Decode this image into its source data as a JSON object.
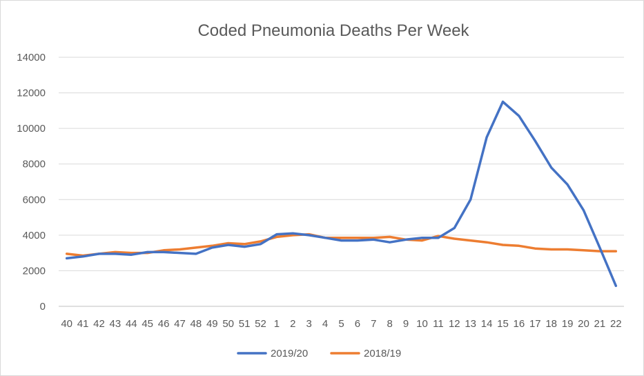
{
  "chart_data": {
    "type": "line",
    "title": "Coded Pneumonia Deaths Per Week",
    "xlabel": "",
    "ylabel": "",
    "ylim": [
      0,
      14000
    ],
    "yticks": [
      "0",
      "2000",
      "4000",
      "6000",
      "8000",
      "10000",
      "12000",
      "14000"
    ],
    "categories": [
      "40",
      "41",
      "42",
      "43",
      "44",
      "45",
      "46",
      "47",
      "48",
      "49",
      "50",
      "51",
      "52",
      "1",
      "2",
      "3",
      "4",
      "5",
      "6",
      "7",
      "8",
      "9",
      "10",
      "11",
      "12",
      "13",
      "14",
      "15",
      "16",
      "17",
      "18",
      "19",
      "20",
      "21",
      "22"
    ],
    "grid": true,
    "legend": "bottom",
    "series": [
      {
        "name": "2019/20",
        "color": "#4472c4",
        "values": [
          2700,
          2800,
          2950,
          2950,
          2900,
          3050,
          3050,
          3000,
          2950,
          3300,
          3450,
          3350,
          3500,
          4050,
          4100,
          4000,
          3850,
          3700,
          3700,
          3750,
          3600,
          3750,
          3850,
          3850,
          4400,
          6000,
          9500,
          11500,
          10700,
          9300,
          7800,
          6850,
          5400,
          3300,
          1150
        ]
      },
      {
        "name": "2018/19",
        "color": "#ed7d31",
        "values": [
          2950,
          2850,
          2950,
          3050,
          3000,
          3000,
          3150,
          3200,
          3300,
          3400,
          3550,
          3500,
          3650,
          3900,
          4000,
          4050,
          3850,
          3850,
          3850,
          3850,
          3900,
          3750,
          3700,
          3950,
          3800,
          3700,
          3600,
          3450,
          3400,
          3250,
          3200,
          3200,
          3150,
          3100,
          3100
        ]
      }
    ]
  }
}
